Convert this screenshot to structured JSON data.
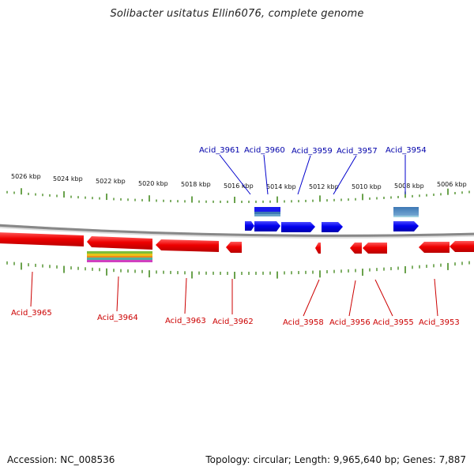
{
  "title": "Solibacter usitatus Ellin6076, complete genome",
  "footer": {
    "accession": "Accession: NC_008536",
    "summary": "Topology: circular; Length: 9,965,640 bp; Genes: 7,887"
  },
  "colors": {
    "forward_gene": "#0000ee",
    "reverse_gene": "#ee0000",
    "tick": "#2a7a00",
    "backbone": "#888888",
    "label_top": "#0000aa",
    "label_bottom": "#cc0000"
  },
  "scale": {
    "unit": "kbp",
    "labels": [
      "5026 kbp",
      "5024 kbp",
      "5022 kbp",
      "5020 kbp",
      "5018 kbp",
      "5016 kbp",
      "5014 kbp",
      "5012 kbp",
      "5010 kbp",
      "5008 kbp",
      "5006 kbp"
    ]
  },
  "genes_top": [
    {
      "name": "Acid_3961",
      "strand": "forward"
    },
    {
      "name": "Acid_3960",
      "strand": "forward"
    },
    {
      "name": "Acid_3959",
      "strand": "forward"
    },
    {
      "name": "Acid_3957",
      "strand": "forward"
    },
    {
      "name": "Acid_3954",
      "strand": "forward"
    }
  ],
  "genes_bottom": [
    {
      "name": "Acid_3965",
      "strand": "reverse"
    },
    {
      "name": "Acid_3964",
      "strand": "reverse"
    },
    {
      "name": "Acid_3963",
      "strand": "reverse"
    },
    {
      "name": "Acid_3962",
      "strand": "reverse"
    },
    {
      "name": "Acid_3958",
      "strand": "reverse"
    },
    {
      "name": "Acid_3956",
      "strand": "reverse"
    },
    {
      "name": "Acid_3955",
      "strand": "reverse"
    },
    {
      "name": "Acid_3953",
      "strand": "reverse"
    }
  ]
}
